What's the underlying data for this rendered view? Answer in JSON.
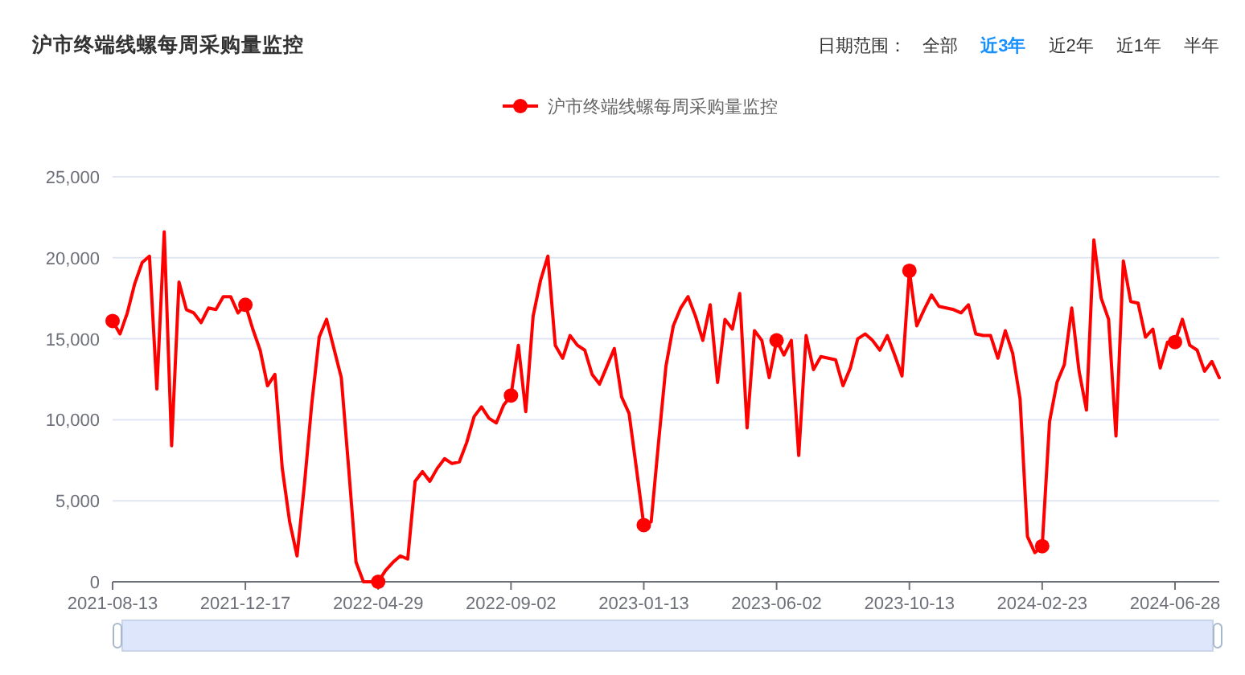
{
  "chart_data": {
    "type": "line",
    "title": "沪市终端线螺每周采购量监控",
    "annotations": [
      "日期范围：",
      "全部",
      "近3年",
      "近2年",
      "近1年",
      "半年"
    ],
    "categories": [
      "2021-08-13",
      null,
      null,
      null,
      null,
      null,
      null,
      null,
      null,
      null,
      null,
      null,
      null,
      null,
      null,
      null,
      null,
      null,
      "2021-12-17",
      null,
      null,
      null,
      null,
      null,
      null,
      null,
      null,
      null,
      null,
      null,
      null,
      null,
      null,
      null,
      null,
      null,
      "2022-04-29",
      null,
      null,
      null,
      null,
      null,
      null,
      null,
      null,
      null,
      null,
      null,
      null,
      null,
      null,
      null,
      null,
      null,
      "2022-09-02",
      null,
      null,
      null,
      null,
      null,
      null,
      null,
      null,
      null,
      null,
      null,
      null,
      null,
      null,
      null,
      null,
      null,
      "2023-01-13",
      null,
      null,
      null,
      null,
      null,
      null,
      null,
      null,
      null,
      null,
      null,
      null,
      null,
      null,
      null,
      null,
      null,
      "2023-06-02",
      null,
      null,
      null,
      null,
      null,
      null,
      null,
      null,
      null,
      null,
      null,
      null,
      null,
      null,
      null,
      null,
      null,
      "2023-10-13",
      null,
      null,
      null,
      null,
      null,
      null,
      null,
      null,
      null,
      null,
      null,
      null,
      null,
      null,
      null,
      null,
      null,
      "2024-02-23",
      null,
      null,
      null,
      null,
      null,
      null,
      null,
      null,
      null,
      null,
      null,
      null,
      null,
      null,
      null,
      null,
      null,
      "2024-06-28",
      null,
      null,
      null,
      null,
      null,
      null
    ],
    "series": [
      {
        "name": "沪市终端线螺每周采购量监控",
        "color": "#ff0000",
        "values": [
          16100,
          15300,
          16600,
          18400,
          19700,
          20100,
          11900,
          21600,
          8400,
          18500,
          16800,
          16600,
          16000,
          16900,
          16800,
          17600,
          17600,
          16600,
          17100,
          15600,
          14300,
          12100,
          12800,
          7000,
          3700,
          1600,
          6000,
          11000,
          15100,
          16200,
          14400,
          12600,
          7000,
          1200,
          0,
          0,
          0,
          700,
          1200,
          1600,
          1400,
          6200,
          6800,
          6200,
          7000,
          7600,
          7300,
          7400,
          8600,
          10200,
          10800,
          10100,
          9800,
          10900,
          11500,
          14600,
          10500,
          16400,
          18600,
          20100,
          14600,
          13800,
          15200,
          14600,
          14300,
          12800,
          12200,
          13300,
          14400,
          11400,
          10400,
          7000,
          3500,
          3700,
          8600,
          13300,
          15800,
          16900,
          17600,
          16400,
          14900,
          17100,
          12300,
          16200,
          15600,
          17800,
          9500,
          15500,
          14900,
          12600,
          14900,
          14000,
          14900,
          7800,
          15200,
          13100,
          13900,
          13800,
          13700,
          12100,
          13200,
          15000,
          15300,
          14900,
          14300,
          15200,
          14000,
          12700,
          19200,
          15800,
          16800,
          17700,
          17000,
          16900,
          16800,
          16600,
          17100,
          15300,
          15200,
          15200,
          13800,
          15500,
          14100,
          11300,
          2800,
          1800,
          2200,
          9900,
          12300,
          13400,
          16900,
          13000,
          10600,
          21100,
          17500,
          16200,
          9000,
          19800,
          17300,
          17200,
          15100,
          15600,
          13200,
          14800,
          14800,
          16200,
          14600,
          14300,
          13000,
          13600,
          12600
        ]
      },
      {
        "type": "scatter",
        "color": "#ff0000",
        "values": [
          16100,
          null,
          null,
          null,
          null,
          null,
          null,
          null,
          null,
          null,
          null,
          null,
          null,
          null,
          null,
          null,
          null,
          null,
          17100,
          null,
          null,
          null,
          null,
          null,
          null,
          null,
          null,
          null,
          null,
          null,
          null,
          null,
          null,
          null,
          null,
          null,
          0,
          null,
          null,
          null,
          null,
          null,
          null,
          null,
          null,
          null,
          null,
          null,
          null,
          null,
          null,
          null,
          null,
          null,
          11500,
          null,
          null,
          null,
          null,
          null,
          null,
          null,
          null,
          null,
          null,
          null,
          null,
          null,
          null,
          null,
          null,
          null,
          3500,
          null,
          null,
          null,
          null,
          null,
          null,
          null,
          null,
          null,
          null,
          null,
          null,
          null,
          null,
          null,
          null,
          null,
          14900,
          null,
          null,
          null,
          null,
          null,
          null,
          null,
          null,
          null,
          null,
          null,
          null,
          null,
          null,
          null,
          null,
          null,
          19200,
          null,
          null,
          null,
          null,
          null,
          null,
          null,
          null,
          null,
          null,
          null,
          null,
          null,
          null,
          null,
          null,
          null,
          2200,
          null,
          null,
          null,
          null,
          null,
          null,
          null,
          null,
          null,
          null,
          null,
          null,
          null,
          null,
          null,
          null,
          null,
          14800,
          null,
          null,
          null,
          null,
          null,
          null
        ]
      }
    ],
    "ylim": [
      0,
      25000
    ],
    "yticks": [
      0,
      {
        "value": 5000,
        "label": "5,000"
      },
      {
        "value": 10000,
        "label": "10,000"
      },
      {
        "value": 15000,
        "label": "15,000"
      },
      {
        "value": 20000,
        "label": "20,000"
      },
      {
        "value": 25000,
        "label": "25,000"
      }
    ],
    "grid": "y",
    "legend": "top",
    "line_style": "solid"
  }
}
